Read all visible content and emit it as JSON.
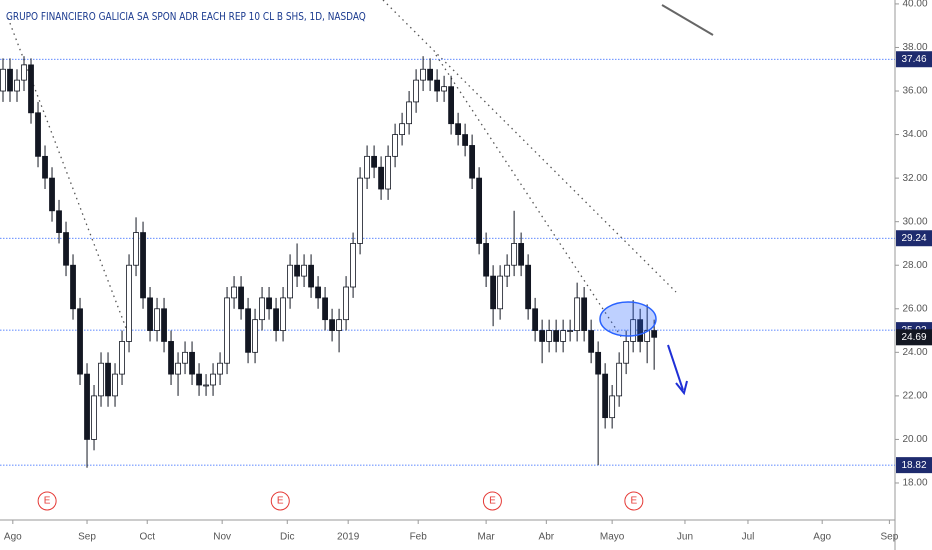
{
  "chart_data": {
    "type": "candlestick",
    "title": "GRUPO FINANCIERO GALICIA SA SPON ADR EACH REP 10 CL B SHS, 1D, NASDAQ",
    "series": [
      {
        "color_up": "#ffffff",
        "color_down": "#131722",
        "edge_color": "#131722",
        "open": [
          36.0,
          37.0,
          36.0,
          36.5,
          37.2,
          35.0,
          33.0,
          32.0,
          30.5,
          29.5,
          28.0,
          26.0,
          23.0,
          20.0,
          22.0,
          23.5,
          22.0,
          23.0,
          24.5,
          28.0,
          29.5,
          26.5,
          25.0,
          26.0,
          24.5,
          23.0,
          23.5,
          24.0,
          23.0,
          22.5,
          22.5,
          23.0,
          23.5,
          26.5,
          27.0,
          26.0,
          24.0,
          25.5,
          26.5,
          26.0,
          25.0,
          26.5,
          28.0,
          27.5,
          28.0,
          27.0,
          26.5,
          25.5,
          25.0,
          25.5,
          27.0,
          29.0,
          32.0,
          33.0,
          32.5,
          31.5,
          33.0,
          34.0,
          34.5,
          35.5,
          36.5,
          37.0,
          36.5,
          36.0,
          36.2,
          34.5,
          34.0,
          33.5,
          32.0,
          29.0,
          27.5,
          26.0,
          27.5,
          28.0,
          29.0,
          28.0,
          26.0,
          25.0,
          24.5,
          25.0,
          24.5,
          25.0,
          25.0,
          26.5,
          25.0,
          24.0,
          23.0,
          21.0,
          22.0,
          23.5,
          24.5,
          25.5,
          24.5,
          25.0
        ],
        "high": [
          37.5,
          37.5,
          37.0,
          37.6,
          37.5,
          35.5,
          33.5,
          32.5,
          31.0,
          30.0,
          28.5,
          26.5,
          23.5,
          22.5,
          24.0,
          24.0,
          23.5,
          25.0,
          28.5,
          30.2,
          30.0,
          27.0,
          26.5,
          26.5,
          25.0,
          24.0,
          24.5,
          24.5,
          23.5,
          23.0,
          23.5,
          24.0,
          27.0,
          27.5,
          27.5,
          26.5,
          26.0,
          27.0,
          27.0,
          26.5,
          27.0,
          28.5,
          29.0,
          28.5,
          28.5,
          27.5,
          27.0,
          26.0,
          26.0,
          27.5,
          29.5,
          32.5,
          33.5,
          33.5,
          33.0,
          33.5,
          34.5,
          35.0,
          36.0,
          37.0,
          37.6,
          37.5,
          37.0,
          36.7,
          36.7,
          35.0,
          34.5,
          34.0,
          32.5,
          29.5,
          28.0,
          28.0,
          28.5,
          30.5,
          29.5,
          28.5,
          26.5,
          25.5,
          25.5,
          25.5,
          25.5,
          25.5,
          27.2,
          27.0,
          25.5,
          24.5,
          23.5,
          22.5,
          24.0,
          25.0,
          26.4,
          26.0,
          26.2,
          25.5
        ],
        "low": [
          35.5,
          35.5,
          35.5,
          36.0,
          34.5,
          32.5,
          31.5,
          30.0,
          29.0,
          27.5,
          25.5,
          22.5,
          18.7,
          19.5,
          21.5,
          21.5,
          21.5,
          22.5,
          24.0,
          27.5,
          26.0,
          24.5,
          24.5,
          24.0,
          22.5,
          22.0,
          23.0,
          22.5,
          22.0,
          22.0,
          22.0,
          22.5,
          23.0,
          26.0,
          25.5,
          23.5,
          23.5,
          25.0,
          25.5,
          24.5,
          24.5,
          26.0,
          27.0,
          27.0,
          26.5,
          26.0,
          25.0,
          24.5,
          24.0,
          25.0,
          26.5,
          28.5,
          31.5,
          32.0,
          31.0,
          31.0,
          32.5,
          33.5,
          34.0,
          35.0,
          36.0,
          36.0,
          35.5,
          35.5,
          34.0,
          33.5,
          33.0,
          31.5,
          28.5,
          27.0,
          25.2,
          25.5,
          27.0,
          27.5,
          27.5,
          25.5,
          24.5,
          23.5,
          24.0,
          24.0,
          24.0,
          24.5,
          24.5,
          24.5,
          23.5,
          18.82,
          20.5,
          20.5,
          21.5,
          23.0,
          24.0,
          24.0,
          23.5,
          23.2
        ],
        "close": [
          37.0,
          36.0,
          36.5,
          37.2,
          35.0,
          33.0,
          32.0,
          30.5,
          29.5,
          28.0,
          26.0,
          23.0,
          20.0,
          22.0,
          23.5,
          22.0,
          23.0,
          24.5,
          28.0,
          29.5,
          26.5,
          25.0,
          26.0,
          24.5,
          23.0,
          23.5,
          24.0,
          23.0,
          22.5,
          22.5,
          23.0,
          23.5,
          26.5,
          27.0,
          26.0,
          24.0,
          25.5,
          26.5,
          26.0,
          25.0,
          26.5,
          28.0,
          27.5,
          28.0,
          27.0,
          26.5,
          25.5,
          25.0,
          25.5,
          27.0,
          29.0,
          32.0,
          33.0,
          32.5,
          31.5,
          33.0,
          34.0,
          34.5,
          35.5,
          36.5,
          37.0,
          36.5,
          36.0,
          36.2,
          34.5,
          34.0,
          33.5,
          32.0,
          29.0,
          27.5,
          26.0,
          27.5,
          28.0,
          29.0,
          28.0,
          26.0,
          25.0,
          24.5,
          25.0,
          24.5,
          25.0,
          25.0,
          26.5,
          25.0,
          24.0,
          23.0,
          21.0,
          22.0,
          23.5,
          24.5,
          25.5,
          24.5,
          25.0,
          24.69
        ]
      }
    ],
    "xlim": [
      -0.43,
      127.4
    ],
    "xticks": [
      {
        "value": 1.4,
        "label": "Ago"
      },
      {
        "value": 12,
        "label": "Sep"
      },
      {
        "value": 20.6,
        "label": "Oct"
      },
      {
        "value": 31.3,
        "label": "Nov"
      },
      {
        "value": 40.6,
        "label": "Dic"
      },
      {
        "value": 49.3,
        "label": "2019"
      },
      {
        "value": 59.3,
        "label": "Feb"
      },
      {
        "value": 69,
        "label": "Mar"
      },
      {
        "value": 77.6,
        "label": "Abr"
      },
      {
        "value": 87,
        "label": "Mayo"
      },
      {
        "value": 97.4,
        "label": "Jun"
      },
      {
        "value": 106.4,
        "label": "Jul"
      },
      {
        "value": 117,
        "label": "Ago"
      },
      {
        "value": 126.6,
        "label": "Sep"
      }
    ],
    "ylim": [
      16.3,
      40.18
    ],
    "yticks": [
      {
        "value": 18,
        "label": "18.00"
      },
      {
        "value": 20,
        "label": "20.00"
      },
      {
        "value": 22,
        "label": "22.00"
      },
      {
        "value": 24,
        "label": "24.00"
      },
      {
        "value": 26,
        "label": "26.00"
      },
      {
        "value": 28,
        "label": "28.00"
      },
      {
        "value": 30,
        "label": "30.00"
      },
      {
        "value": 32,
        "label": "32.00"
      },
      {
        "value": 34,
        "label": "34.00"
      },
      {
        "value": 36,
        "label": "36.00"
      },
      {
        "value": 38,
        "label": "38.00"
      },
      {
        "value": 40,
        "label": "40.00"
      }
    ],
    "levels": [
      37.46,
      29.24,
      25.02,
      18.82
    ],
    "level_color": "#2962ff",
    "last_price": 24.69,
    "events": [
      {
        "x": 6.3,
        "label": "E"
      },
      {
        "x": 39.6,
        "label": "E"
      },
      {
        "x": 69.9,
        "label": "E"
      },
      {
        "x": 90.1,
        "label": "E"
      }
    ]
  }
}
